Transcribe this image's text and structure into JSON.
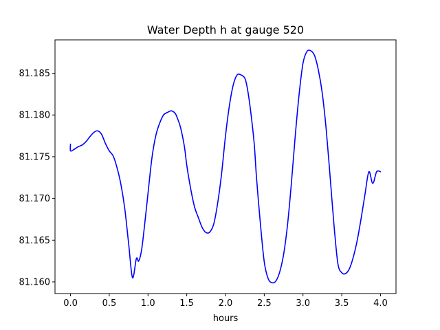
{
  "chart_data": {
    "type": "line",
    "title": "Water Depth h at gauge 520",
    "xlabel": "hours",
    "ylabel": "",
    "xlim": [
      -0.2,
      4.2
    ],
    "ylim": [
      81.1586,
      81.189
    ],
    "xticks": [
      0.0,
      0.5,
      1.0,
      1.5,
      2.0,
      2.5,
      3.0,
      3.5,
      4.0
    ],
    "xtick_labels": [
      "0.0",
      "0.5",
      "1.0",
      "1.5",
      "2.0",
      "2.5",
      "3.0",
      "3.5",
      "4.0"
    ],
    "yticks": [
      81.16,
      81.165,
      81.17,
      81.175,
      81.18,
      81.185
    ],
    "ytick_labels": [
      "81.160",
      "81.165",
      "81.170",
      "81.175",
      "81.180",
      "81.185"
    ],
    "grid": false,
    "series": [
      {
        "color": "#0000ff",
        "x": [
          0.0,
          0.0,
          0.05,
          0.1,
          0.15,
          0.2,
          0.25,
          0.3,
          0.35,
          0.4,
          0.45,
          0.5,
          0.55,
          0.6,
          0.65,
          0.7,
          0.75,
          0.8,
          0.85,
          0.88,
          0.92,
          0.97,
          1.0,
          1.05,
          1.1,
          1.15,
          1.2,
          1.25,
          1.3,
          1.35,
          1.38,
          1.42,
          1.47,
          1.5,
          1.55,
          1.6,
          1.65,
          1.7,
          1.75,
          1.8,
          1.85,
          1.9,
          1.95,
          2.0,
          2.05,
          2.1,
          2.15,
          2.2,
          2.25,
          2.28,
          2.32,
          2.37,
          2.4,
          2.45,
          2.5,
          2.55,
          2.6,
          2.65,
          2.7,
          2.75,
          2.8,
          2.85,
          2.9,
          2.95,
          3.0,
          3.05,
          3.1,
          3.15,
          3.2,
          3.25,
          3.3,
          3.35,
          3.4,
          3.45,
          3.5,
          3.55,
          3.6,
          3.65,
          3.7,
          3.75,
          3.8,
          3.85,
          3.9,
          3.95,
          4.0
        ],
        "y": [
          81.1765,
          81.1757,
          81.1759,
          81.1762,
          81.1764,
          81.1768,
          81.1774,
          81.1779,
          81.1781,
          81.1777,
          81.1766,
          81.1757,
          81.1751,
          81.1737,
          81.1717,
          81.1688,
          81.1646,
          81.1605,
          81.1628,
          81.1625,
          81.164,
          81.168,
          81.1706,
          81.1748,
          81.1775,
          81.179,
          81.18,
          81.1803,
          81.1805,
          81.1802,
          81.1796,
          81.1785,
          81.1762,
          81.174,
          81.1712,
          81.169,
          81.1677,
          81.1665,
          81.1659,
          81.166,
          81.167,
          81.1695,
          81.173,
          81.1775,
          81.1811,
          81.1836,
          81.1848,
          81.1848,
          81.1844,
          81.1833,
          81.1808,
          81.1766,
          81.1725,
          81.167,
          81.1624,
          81.1604,
          81.1599,
          81.1601,
          81.1612,
          81.1633,
          81.1668,
          81.1718,
          81.1775,
          81.1825,
          81.1862,
          81.1876,
          81.1877,
          81.1871,
          81.1853,
          81.1825,
          81.1782,
          81.1726,
          81.1668,
          81.1622,
          81.1611,
          81.161,
          81.1616,
          81.163,
          81.165,
          81.1676,
          81.1705,
          81.1732,
          81.1718,
          81.1732,
          81.1732
        ]
      }
    ]
  }
}
